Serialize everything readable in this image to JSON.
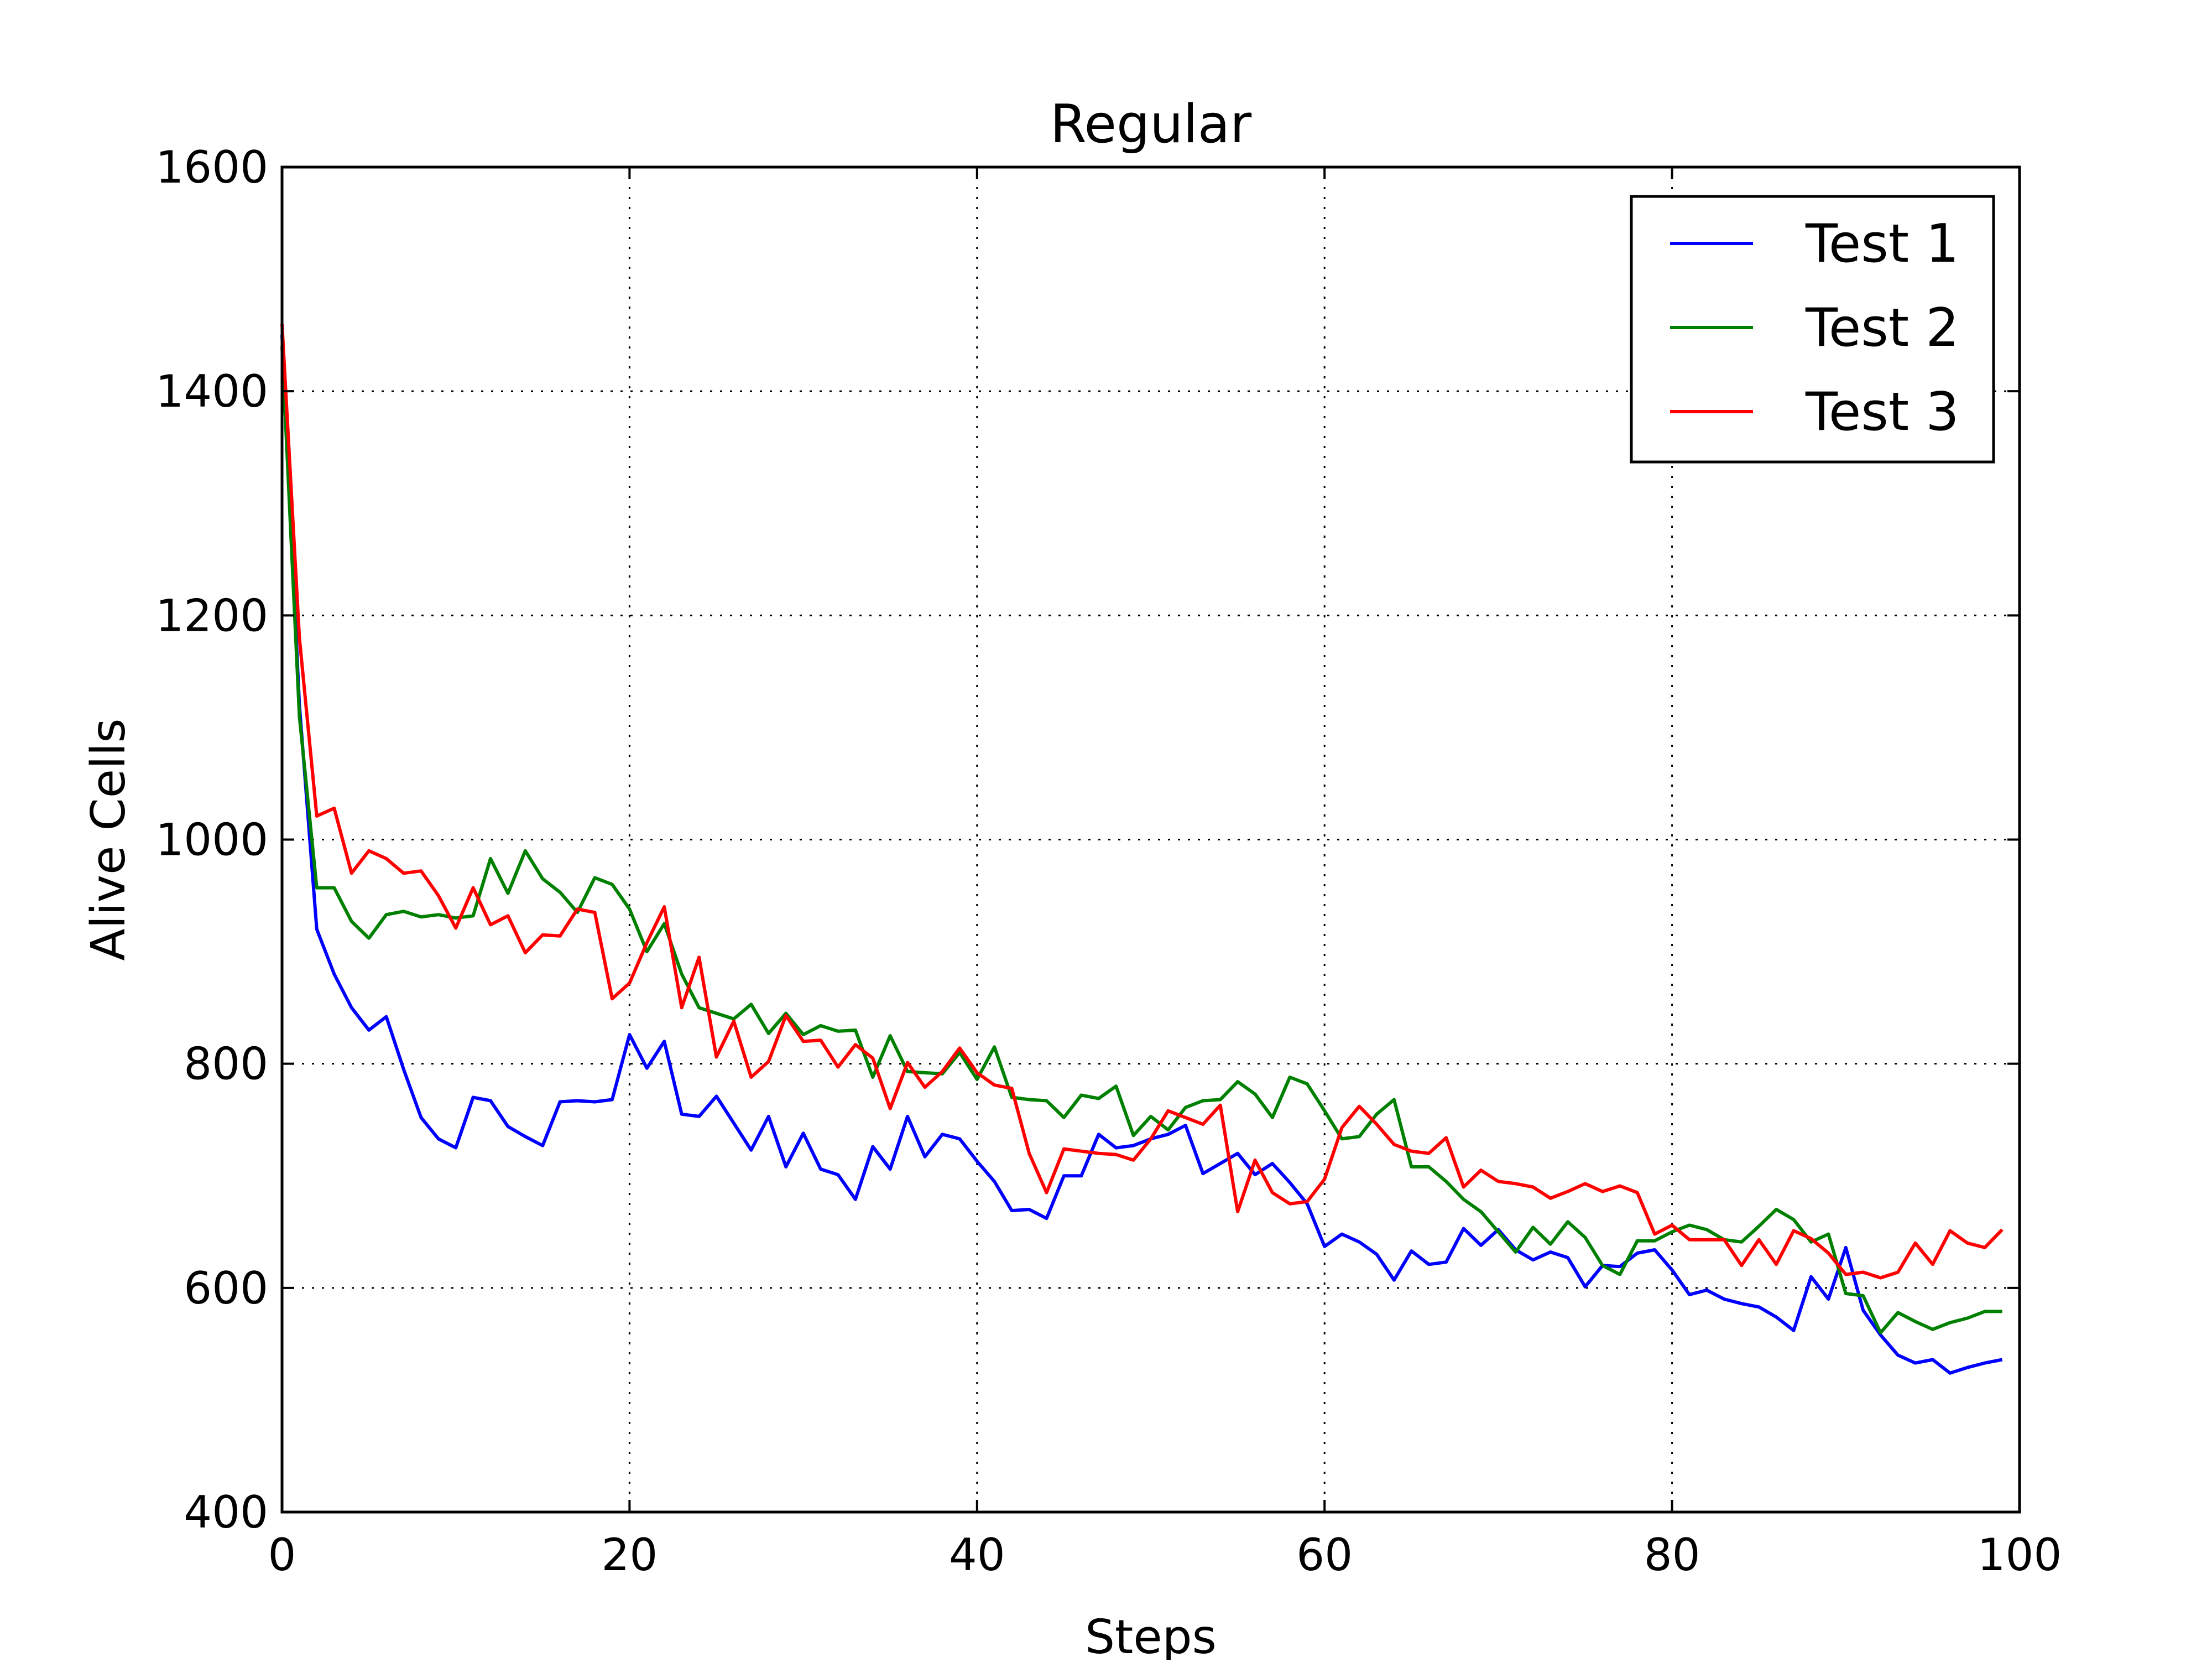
{
  "chart_data": {
    "type": "line",
    "title": "Regular",
    "xlabel": "Steps",
    "ylabel": "Alive Cells",
    "xlim": [
      0,
      100
    ],
    "ylim": [
      400,
      1600
    ],
    "xticks": [
      0,
      20,
      40,
      60,
      80,
      100
    ],
    "yticks": [
      400,
      600,
      800,
      1000,
      1200,
      1400,
      1600
    ],
    "grid": true,
    "legend_position": "top-right",
    "x": [
      0,
      1,
      2,
      3,
      4,
      5,
      6,
      7,
      8,
      9,
      10,
      11,
      12,
      13,
      14,
      15,
      16,
      17,
      18,
      19,
      20,
      21,
      22,
      23,
      24,
      25,
      26,
      27,
      28,
      29,
      30,
      31,
      32,
      33,
      34,
      35,
      36,
      37,
      38,
      39,
      40,
      41,
      42,
      43,
      44,
      45,
      46,
      47,
      48,
      49,
      50,
      51,
      52,
      53,
      54,
      55,
      56,
      57,
      58,
      59,
      60,
      61,
      62,
      63,
      64,
      65,
      66,
      67,
      68,
      69,
      70,
      71,
      72,
      73,
      74,
      75,
      76,
      77,
      78,
      79,
      80,
      81,
      82,
      83,
      84,
      85,
      86,
      87,
      88,
      89,
      90,
      91,
      92,
      93,
      94,
      95,
      96,
      97,
      98,
      99
    ],
    "series": [
      {
        "name": "Test 1",
        "color": "#0000ff",
        "values": [
          1450,
          1120,
          920,
          880,
          850,
          830,
          842,
          795,
          752,
          733,
          725,
          770,
          767,
          744,
          735,
          727,
          766,
          767,
          766,
          768,
          826,
          796,
          820,
          755,
          753,
          771,
          747,
          723,
          753,
          708,
          738,
          706,
          701,
          679,
          726,
          706,
          753,
          717,
          737,
          733,
          713,
          695,
          669,
          670,
          662,
          700,
          700,
          737,
          725,
          727,
          733,
          737,
          745,
          702,
          711,
          720,
          701,
          711,
          694,
          675,
          637,
          648,
          641,
          630,
          607,
          633,
          621,
          623,
          653,
          638,
          652,
          634,
          625,
          632,
          627,
          601,
          620,
          619,
          631,
          634,
          616,
          594,
          598,
          590,
          586,
          583,
          574,
          562,
          610,
          590,
          636,
          580,
          558,
          540,
          533,
          536,
          524,
          529,
          533,
          536
        ]
      },
      {
        "name": "Test 2",
        "color": "#008000",
        "values": [
          1440,
          1110,
          957,
          957,
          927,
          912,
          933,
          936,
          931,
          933,
          930,
          932,
          983,
          952,
          990,
          965,
          953,
          935,
          966,
          960,
          938,
          900,
          925,
          880,
          850,
          845,
          840,
          853,
          827,
          845,
          826,
          834,
          829,
          830,
          788,
          825,
          793,
          792,
          791,
          810,
          786,
          815,
          770,
          768,
          767,
          752,
          772,
          769,
          780,
          736,
          753,
          741,
          761,
          767,
          768,
          784,
          773,
          752,
          788,
          782,
          758,
          733,
          735,
          755,
          768,
          708,
          708,
          695,
          679,
          668,
          650,
          632,
          654,
          639,
          659,
          645,
          620,
          612,
          642,
          642,
          650,
          656,
          652,
          643,
          641,
          655,
          670,
          661,
          641,
          648,
          595,
          593,
          560,
          578,
          570,
          563,
          569,
          573,
          579,
          579
        ]
      },
      {
        "name": "Test 3",
        "color": "#ff0000",
        "values": [
          1460,
          1180,
          1021,
          1028,
          970,
          990,
          983,
          970,
          972,
          950,
          921,
          957,
          924,
          932,
          899,
          915,
          914,
          938,
          935,
          858,
          872,
          908,
          940,
          850,
          895,
          806,
          838,
          788,
          802,
          843,
          820,
          821,
          797,
          817,
          805,
          760,
          801,
          779,
          793,
          814,
          792,
          781,
          778,
          720,
          685,
          724,
          722,
          720,
          719,
          714,
          733,
          758,
          752,
          746,
          763,
          668,
          714,
          685,
          675,
          677,
          697,
          743,
          762,
          746,
          728,
          722,
          720,
          734,
          690,
          705,
          695,
          693,
          690,
          680,
          686,
          693,
          686,
          691,
          685,
          648,
          656,
          643,
          643,
          643,
          620,
          643,
          621,
          651,
          644,
          631,
          612,
          614,
          609,
          614,
          640,
          621,
          651,
          640,
          636,
          652
        ]
      }
    ]
  }
}
